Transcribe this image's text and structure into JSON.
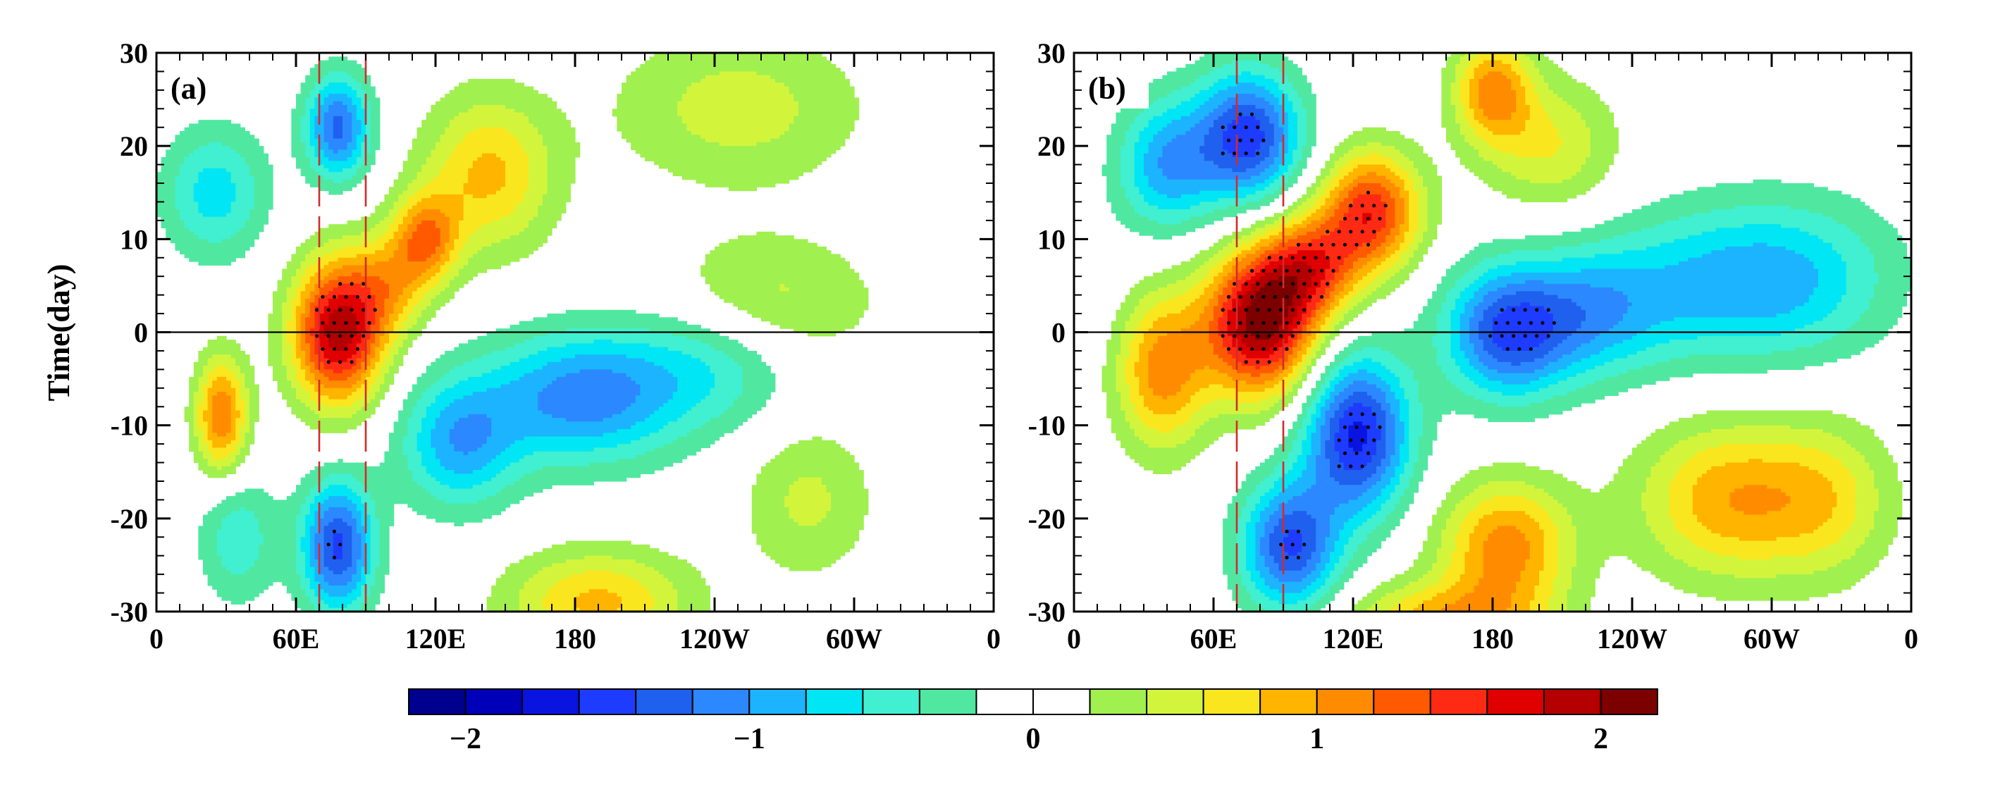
{
  "chart_data": {
    "type": "heatmap",
    "title": "",
    "ylabel": "Time(day)",
    "xlabel": "",
    "x_range_deg": [
      0,
      360
    ],
    "ylim": [
      -30,
      30
    ],
    "x_tick_labels": [
      "0",
      "60E",
      "120E",
      "180",
      "120W",
      "60W",
      "0"
    ],
    "x_tick_values_deg": [
      0,
      60,
      120,
      180,
      240,
      300,
      360
    ],
    "y_ticks": [
      30,
      20,
      10,
      0,
      -10,
      -20,
      -30
    ],
    "reference_lines": {
      "dashed_longitudes_deg": [
        70,
        90
      ],
      "dashed_color": "#d42a2a",
      "zero_time_line": 0
    },
    "panels": [
      {
        "label": "(a)",
        "features": [
          {
            "lon": 78,
            "t": 0,
            "amp": 1.9,
            "sx": 14,
            "st": 5.5
          },
          {
            "lon": 116,
            "t": 10,
            "amp": 1.05,
            "sx": 10,
            "st": 3.5
          },
          {
            "lon": 143,
            "t": 17,
            "amp": 0.85,
            "sx": 20,
            "st": 6
          },
          {
            "lon": 100,
            "t": 5,
            "amp": 0.7,
            "sx": 12,
            "st": 4
          },
          {
            "lon": 28,
            "t": -9,
            "amp": 1.2,
            "sx": 8,
            "st": 4.5
          },
          {
            "lon": 190,
            "t": -29,
            "amp": 0.85,
            "sx": 28,
            "st": 4
          },
          {
            "lon": 262,
            "t": 3,
            "amp": 0.55,
            "sx": 32,
            "st": 5
          },
          {
            "lon": 250,
            "t": 24,
            "amp": 0.5,
            "sx": 38,
            "st": 6
          },
          {
            "lon": 280,
            "t": -18,
            "amp": 0.45,
            "sx": 20,
            "st": 6
          },
          {
            "lon": 78,
            "t": -23,
            "amp": -1.45,
            "sx": 11,
            "st": 5
          },
          {
            "lon": 78,
            "t": 22,
            "amp": -1.25,
            "sx": 10,
            "st": 4
          },
          {
            "lon": 183,
            "t": -7,
            "amp": -1.1,
            "sx": 30,
            "st": 5
          },
          {
            "lon": 130,
            "t": -12,
            "amp": -0.9,
            "sx": 18,
            "st": 5
          },
          {
            "lon": 25,
            "t": 15,
            "amp": -0.7,
            "sx": 16,
            "st": 5
          },
          {
            "lon": 240,
            "t": -3,
            "amp": -0.6,
            "sx": 28,
            "st": 5
          },
          {
            "lon": 35,
            "t": -22,
            "amp": -0.55,
            "sx": 12,
            "st": 5
          }
        ]
      },
      {
        "label": "(b)",
        "features": [
          {
            "lon": 80,
            "t": 1,
            "amp": 2.05,
            "sx": 17,
            "st": 5.5
          },
          {
            "lon": 128,
            "t": 13,
            "amp": 1.5,
            "sx": 15,
            "st": 4.5
          },
          {
            "lon": 102,
            "t": 7,
            "amp": 1.2,
            "sx": 15,
            "st": 4
          },
          {
            "lon": 38,
            "t": -4,
            "amp": 1.1,
            "sx": 14,
            "st": 6
          },
          {
            "lon": 186,
            "t": -23,
            "amp": 1.1,
            "sx": 20,
            "st": 5
          },
          {
            "lon": 160,
            "t": -31,
            "amp": 0.9,
            "sx": 30,
            "st": 3
          },
          {
            "lon": 180,
            "t": 26,
            "amp": 1.05,
            "sx": 12,
            "st": 4
          },
          {
            "lon": 205,
            "t": 20,
            "amp": 0.6,
            "sx": 20,
            "st": 5
          },
          {
            "lon": 282,
            "t": -18,
            "amp": 0.95,
            "sx": 28,
            "st": 6
          },
          {
            "lon": 325,
            "t": -18,
            "amp": 0.55,
            "sx": 20,
            "st": 6
          },
          {
            "lon": 75,
            "t": 21,
            "amp": -1.5,
            "sx": 16,
            "st": 5
          },
          {
            "lon": 40,
            "t": 18,
            "amp": -0.95,
            "sx": 15,
            "st": 5
          },
          {
            "lon": 122,
            "t": -11,
            "amp": -1.65,
            "sx": 16,
            "st": 6
          },
          {
            "lon": 93,
            "t": -23,
            "amp": -1.4,
            "sx": 15,
            "st": 5
          },
          {
            "lon": 186,
            "t": 0,
            "amp": -1.35,
            "sx": 19,
            "st": 5
          },
          {
            "lon": 222,
            "t": 2,
            "amp": -0.75,
            "sx": 22,
            "st": 5
          },
          {
            "lon": 272,
            "t": 5,
            "amp": -0.7,
            "sx": 34,
            "st": 6
          },
          {
            "lon": 315,
            "t": 6,
            "amp": -0.55,
            "sx": 30,
            "st": 6
          }
        ]
      }
    ],
    "colorbar": {
      "levels": [
        -2.2,
        -2.0,
        -1.8,
        -1.6,
        -1.4,
        -1.2,
        -1.0,
        -0.8,
        -0.6,
        -0.4,
        -0.2,
        0.0,
        0.2,
        0.4,
        0.6,
        0.8,
        1.0,
        1.2,
        1.4,
        1.6,
        1.8,
        2.0,
        2.2
      ],
      "colors": [
        "#00008f",
        "#0000b8",
        "#0a14e0",
        "#1e3cff",
        "#2060ee",
        "#2c88ff",
        "#1cb4ff",
        "#00e6f4",
        "#40f0d0",
        "#50e8a0",
        "#ffffff",
        "#ffffff",
        "#a0f050",
        "#d2f53c",
        "#fae61e",
        "#ffb400",
        "#ff8c00",
        "#ff5a00",
        "#ff2a14",
        "#e00000",
        "#b40000",
        "#7c0000"
      ],
      "tick_labels": [
        "−2",
        "−1",
        "0",
        "1",
        "2"
      ],
      "tick_values": [
        -2,
        -1,
        0,
        1,
        2
      ]
    }
  }
}
